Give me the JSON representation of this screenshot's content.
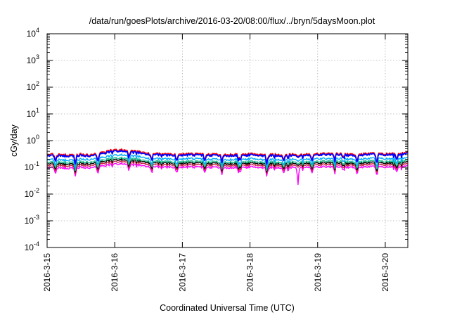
{
  "chart_data": {
    "type": "line",
    "title": "/data/run/goesPlots/archive/2016-03-20/08:00/flux/../bryn/5daysMoon.plot",
    "xlabel": "Coordinated Universal Time (UTC)",
    "ylabel": "cGy/day",
    "yscale": "log",
    "ylim": [
      0.0001,
      10000
    ],
    "y_ticks": [
      {
        "base": "10",
        "exp": "-4",
        "value": 0.0001
      },
      {
        "base": "10",
        "exp": "-3",
        "value": 0.001
      },
      {
        "base": "10",
        "exp": "-2",
        "value": 0.01
      },
      {
        "base": "10",
        "exp": "-1",
        "value": 0.1
      },
      {
        "base": "10",
        "exp": "0",
        "value": 1
      },
      {
        "base": "10",
        "exp": "1",
        "value": 10
      },
      {
        "base": "10",
        "exp": "2",
        "value": 100
      },
      {
        "base": "10",
        "exp": "3",
        "value": 1000
      },
      {
        "base": "10",
        "exp": "4",
        "value": 10000
      }
    ],
    "xlim": [
      "2016-03-15T00:00",
      "2016-03-20T08:00"
    ],
    "x_ticks": [
      "2016-3-15",
      "2016-3-16",
      "2016-3-17",
      "2016-3-18",
      "2016-3-19",
      "2016-3-20"
    ],
    "grid": true,
    "series": [
      {
        "color": "#ff0000",
        "values": [
          0.32,
          0.3,
          0.3,
          0.3,
          0.31,
          0.3,
          0.32,
          0.38,
          0.45,
          0.47,
          0.42,
          0.4,
          0.36,
          0.33,
          0.32,
          0.31,
          0.31,
          0.32,
          0.32,
          0.31,
          0.31,
          0.31,
          0.3,
          0.31,
          0.31,
          0.32,
          0.31,
          0.3,
          0.31,
          0.3,
          0.31,
          0.31,
          0.31,
          0.32,
          0.33,
          0.33,
          0.32,
          0.31,
          0.31,
          0.33,
          0.34,
          0.32,
          0.33,
          0.34,
          0.35
        ]
      },
      {
        "color": "#0000ff",
        "values": [
          0.28,
          0.27,
          0.27,
          0.27,
          0.28,
          0.27,
          0.29,
          0.34,
          0.4,
          0.42,
          0.37,
          0.36,
          0.32,
          0.3,
          0.29,
          0.28,
          0.28,
          0.29,
          0.29,
          0.28,
          0.28,
          0.28,
          0.27,
          0.28,
          0.28,
          0.29,
          0.28,
          0.27,
          0.28,
          0.27,
          0.28,
          0.28,
          0.28,
          0.29,
          0.3,
          0.3,
          0.29,
          0.28,
          0.28,
          0.3,
          0.31,
          0.29,
          0.3,
          0.31,
          0.32
        ]
      },
      {
        "color": "#00aaff",
        "values": [
          0.2,
          0.19,
          0.19,
          0.19,
          0.2,
          0.2,
          0.21,
          0.24,
          0.28,
          0.3,
          0.27,
          0.26,
          0.23,
          0.21,
          0.21,
          0.2,
          0.2,
          0.21,
          0.21,
          0.2,
          0.2,
          0.2,
          0.19,
          0.2,
          0.2,
          0.21,
          0.2,
          0.19,
          0.2,
          0.19,
          0.2,
          0.2,
          0.2,
          0.21,
          0.21,
          0.21,
          0.21,
          0.2,
          0.2,
          0.21,
          0.22,
          0.21,
          0.21,
          0.22,
          0.22
        ]
      },
      {
        "color": "#20c090",
        "values": [
          0.16,
          0.155,
          0.155,
          0.155,
          0.16,
          0.158,
          0.165,
          0.19,
          0.22,
          0.23,
          0.21,
          0.2,
          0.18,
          0.17,
          0.165,
          0.16,
          0.16,
          0.165,
          0.165,
          0.16,
          0.16,
          0.16,
          0.155,
          0.16,
          0.16,
          0.165,
          0.16,
          0.155,
          0.16,
          0.155,
          0.16,
          0.16,
          0.16,
          0.165,
          0.17,
          0.17,
          0.165,
          0.16,
          0.16,
          0.17,
          0.175,
          0.165,
          0.17,
          0.175,
          0.178
        ]
      },
      {
        "color": "#000000",
        "values": [
          0.14,
          0.135,
          0.135,
          0.135,
          0.14,
          0.138,
          0.145,
          0.165,
          0.19,
          0.2,
          0.18,
          0.175,
          0.16,
          0.15,
          0.145,
          0.14,
          0.14,
          0.145,
          0.145,
          0.14,
          0.14,
          0.14,
          0.135,
          0.14,
          0.14,
          0.145,
          0.14,
          0.135,
          0.14,
          0.135,
          0.14,
          0.14,
          0.14,
          0.145,
          0.148,
          0.148,
          0.145,
          0.14,
          0.14,
          0.148,
          0.152,
          0.145,
          0.148,
          0.152,
          0.155
        ]
      },
      {
        "color": "#cc2244",
        "values": [
          0.12,
          0.115,
          0.115,
          0.115,
          0.12,
          0.118,
          0.124,
          0.14,
          0.16,
          0.17,
          0.155,
          0.15,
          0.137,
          0.128,
          0.124,
          0.12,
          0.12,
          0.124,
          0.124,
          0.12,
          0.12,
          0.12,
          0.115,
          0.12,
          0.12,
          0.124,
          0.12,
          0.115,
          0.12,
          0.115,
          0.12,
          0.12,
          0.12,
          0.124,
          0.127,
          0.127,
          0.124,
          0.12,
          0.12,
          0.127,
          0.13,
          0.124,
          0.127,
          0.13,
          0.132
        ]
      },
      {
        "color": "#ff00ff",
        "values": [
          0.1,
          0.095,
          0.095,
          0.095,
          0.1,
          0.098,
          0.103,
          0.115,
          0.13,
          0.14,
          0.127,
          0.123,
          0.113,
          0.106,
          0.103,
          0.1,
          0.1,
          0.103,
          0.103,
          0.1,
          0.1,
          0.1,
          0.095,
          0.1,
          0.1,
          0.103,
          0.1,
          0.095,
          0.1,
          0.095,
          0.1,
          0.1,
          0.1,
          0.103,
          0.105,
          0.105,
          0.103,
          0.1,
          0.1,
          0.105,
          0.108,
          0.103,
          0.105,
          0.108,
          0.11
        ]
      }
    ],
    "dips": [
      {
        "x": "2016-03-15T03:00",
        "factor": 0.6
      },
      {
        "x": "2016-03-15T10:00",
        "factor": 0.5
      },
      {
        "x": "2016-03-15T18:00",
        "factor": 0.55
      },
      {
        "x": "2016-03-16T05:00",
        "factor": 0.6
      },
      {
        "x": "2016-03-16T13:00",
        "factor": 0.65
      },
      {
        "x": "2016-03-16T22:00",
        "factor": 0.6
      },
      {
        "x": "2016-03-17T08:00",
        "factor": 0.55
      },
      {
        "x": "2016-03-17T14:00",
        "factor": 0.5
      },
      {
        "x": "2016-03-17T20:00",
        "factor": 0.6
      },
      {
        "x": "2016-03-18T06:00",
        "factor": 0.55
      },
      {
        "x": "2016-03-18T12:00",
        "factor": 0.6
      },
      {
        "x": "2016-03-18T17:00",
        "factor": 0.15
      },
      {
        "x": "2016-03-18T22:00",
        "factor": 0.55
      },
      {
        "x": "2016-03-19T06:00",
        "factor": 0.6
      },
      {
        "x": "2016-03-19T14:00",
        "factor": 0.55
      },
      {
        "x": "2016-03-19T21:00",
        "factor": 0.4
      },
      {
        "x": "2016-03-20T04:00",
        "factor": 0.6
      }
    ]
  }
}
